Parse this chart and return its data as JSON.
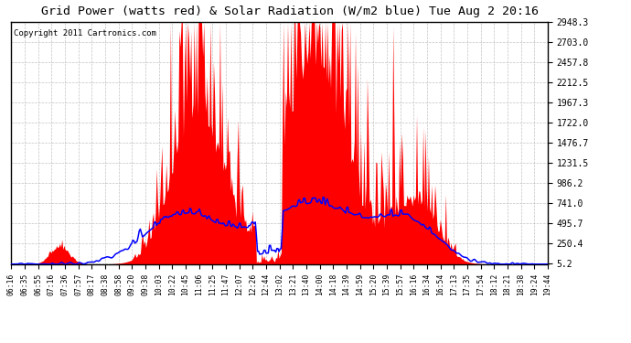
{
  "title": "Grid Power (watts red) & Solar Radiation (W/m2 blue) Tue Aug 2 20:16",
  "copyright": "Copyright 2011 Cartronics.com",
  "background_color": "#ffffff",
  "plot_bg_color": "#ffffff",
  "grid_color": "#bbbbbb",
  "red_fill_color": "#ff0000",
  "blue_line_color": "#0000ff",
  "yticks": [
    5.2,
    250.4,
    495.7,
    741.0,
    986.2,
    1231.5,
    1476.7,
    1722.0,
    1967.3,
    2212.5,
    2457.8,
    2703.0,
    2948.3
  ],
  "xtick_labels": [
    "06:16",
    "06:35",
    "06:55",
    "07:16",
    "07:36",
    "07:57",
    "08:17",
    "08:38",
    "08:58",
    "09:20",
    "09:38",
    "10:03",
    "10:22",
    "10:45",
    "11:06",
    "11:25",
    "11:47",
    "12:07",
    "12:26",
    "12:44",
    "13:02",
    "13:21",
    "13:40",
    "14:00",
    "14:18",
    "14:39",
    "14:59",
    "15:20",
    "15:39",
    "15:57",
    "16:16",
    "16:34",
    "16:54",
    "17:13",
    "17:35",
    "17:54",
    "18:12",
    "18:21",
    "18:38",
    "19:24",
    "19:44"
  ],
  "ymax": 2948.3,
  "ymin": 0,
  "n_points": 500
}
